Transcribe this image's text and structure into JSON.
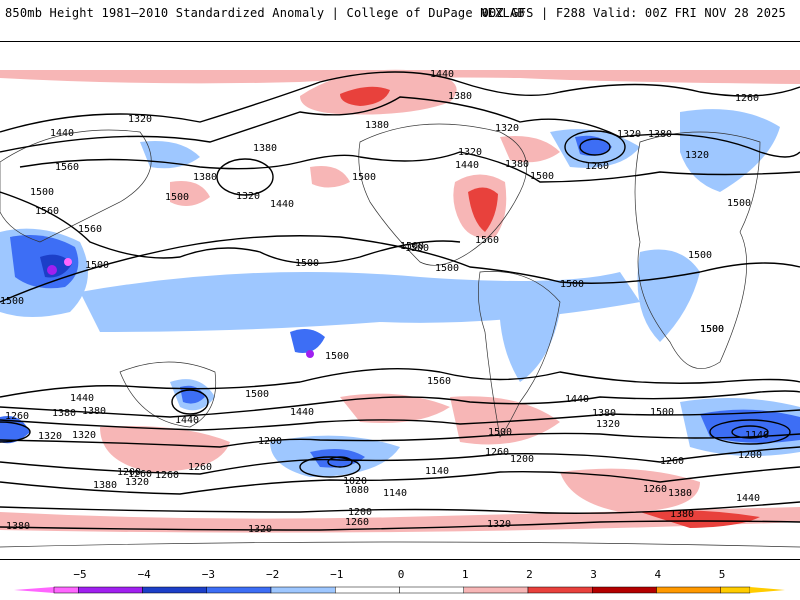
{
  "header": {
    "title": "850mb Height 1981–2010 Standardized Anomaly | College of DuPage NEXLAB",
    "run_info": "00Z GFS | F288 Valid: 00Z FRI NOV 28 2025"
  },
  "contour_labels": {
    "l1": "1440",
    "l2": "1380",
    "l3": "1320",
    "l4": "1380",
    "l5": "1320",
    "l6": "1260",
    "l7": "1320",
    "l8": "1380",
    "l9": "1440",
    "l10": "1320",
    "l11": "1380",
    "l12": "1320",
    "l13": "1380",
    "l14": "1260",
    "l15": "1320",
    "l16": "1380",
    "l17": "1440",
    "l18": "1440",
    "l19": "1500",
    "l20": "1500",
    "l21": "1500",
    "l22": "1560",
    "l23": "1500",
    "l24": "1560",
    "l25": "1500",
    "l26": "1500",
    "l27": "1500",
    "l28": "1500",
    "l29": "1500",
    "l30": "1500",
    "l31": "1500",
    "l32": "1560",
    "l33": "1500",
    "l34": "1440",
    "l35": "1500",
    "l36": "1560",
    "l37": "1500",
    "l38": "1440",
    "l39": "1380",
    "l40": "1320",
    "l41": "1440",
    "l42": "1260",
    "l43": "1200",
    "l44": "1140",
    "l45": "1020",
    "l46": "1080",
    "l47": "1140",
    "l48": "1200",
    "l49": "1260",
    "l50": "1320",
    "l51": "1260",
    "l52": "1200",
    "l53": "1320",
    "l54": "1380",
    "l55": "1440",
    "l56": "1500",
    "l57": "1380",
    "l58": "1320",
    "l59": "1260",
    "l60": "1140",
    "l61": "1200",
    "l62": "1260",
    "l63": "1380",
    "l64": "1440",
    "l65": "1380",
    "l66": "1260",
    "l67": "1320",
    "l68": "1200",
    "l69": "1260",
    "l70": "1380",
    "l71": "1320",
    "l72": "1380",
    "l73": "1260",
    "l74": "1500",
    "l75": "1500",
    "l76": "1500",
    "l77": "1560",
    "l78": "1500"
  },
  "colorbar": {
    "ticks": [
      "−5",
      "−4",
      "−3",
      "−2",
      "−1",
      "0",
      "1",
      "2",
      "3",
      "4",
      "5"
    ],
    "colors": [
      "#ff66ff",
      "#a020f0",
      "#1c3fc8",
      "#3d6ef5",
      "#9ec7ff",
      "#ffffff",
      "#ffffff",
      "#f7b6b6",
      "#e8413c",
      "#b30000",
      "#ff9900",
      "#ffcc00"
    ]
  }
}
